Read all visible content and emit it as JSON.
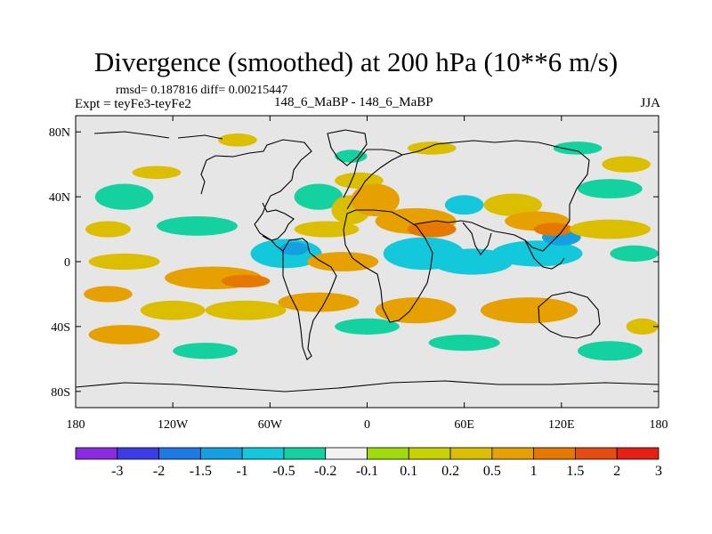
{
  "header": {
    "title": "Divergence (smoothed) at 200 hPa (10**6 m/s)",
    "stats": "rmsd= 0.187816 diff= 0.00215447",
    "experiment": "Expt = teyFe3-teyFe2",
    "case": "148_6_MaBP - 148_6_MaBP",
    "season": "JJA"
  },
  "colors": {
    "background": "#e6e6e6",
    "land_outline": "#000000"
  },
  "chart_data": {
    "type": "heatmap",
    "title": "Divergence (smoothed) at 200 hPa (10**6 m/s)",
    "xlim": [
      -180,
      180
    ],
    "ylim": [
      -90,
      90
    ],
    "x_ticks": [
      {
        "value": -180,
        "label": "180"
      },
      {
        "value": -120,
        "label": "120W"
      },
      {
        "value": -60,
        "label": "60W"
      },
      {
        "value": 0,
        "label": "0"
      },
      {
        "value": 60,
        "label": "60E"
      },
      {
        "value": 120,
        "label": "120E"
      },
      {
        "value": 180,
        "label": "180"
      }
    ],
    "y_ticks": [
      {
        "value": 80,
        "label": "80N"
      },
      {
        "value": 40,
        "label": "40N"
      },
      {
        "value": 0,
        "label": "0"
      },
      {
        "value": -40,
        "label": "40S"
      },
      {
        "value": -80,
        "label": "80S"
      }
    ],
    "colorbar": {
      "colors": [
        "#8a2be2",
        "#3c3ce6",
        "#1e78e6",
        "#14a0e0",
        "#14c8dc",
        "#14d2a0",
        "#f2f2f2",
        "#a0dc0a",
        "#c8d200",
        "#dcbe00",
        "#e6a000",
        "#e67800",
        "#e64b14",
        "#e61e14"
      ],
      "labels": [
        "-3",
        "-2",
        "-1.5",
        "-1",
        "-0.5",
        "-0.2",
        "-0.1",
        "0.1",
        "0.2",
        "0.5",
        "1",
        "1.5",
        "2",
        "3"
      ]
    },
    "features": [
      {
        "lon": -150,
        "lat": 40,
        "rx": 18,
        "ry": 8,
        "level": -0.2
      },
      {
        "lon": -160,
        "lat": 20,
        "rx": 14,
        "ry": 5,
        "level": 0.2
      },
      {
        "lon": -150,
        "lat": 0,
        "rx": 22,
        "ry": 5,
        "level": 0.2
      },
      {
        "lon": -95,
        "lat": -10,
        "rx": 30,
        "ry": 7,
        "level": 0.5
      },
      {
        "lon": -75,
        "lat": -12,
        "rx": 15,
        "ry": 4,
        "level": 1
      },
      {
        "lon": -105,
        "lat": 22,
        "rx": 25,
        "ry": 6,
        "level": -0.2
      },
      {
        "lon": -50,
        "lat": 5,
        "rx": 22,
        "ry": 9,
        "level": -0.5
      },
      {
        "lon": -45,
        "lat": 8,
        "rx": 9,
        "ry": 4,
        "level": -1
      },
      {
        "lon": -30,
        "lat": 40,
        "rx": 15,
        "ry": 8,
        "level": -0.2
      },
      {
        "lon": -10,
        "lat": 32,
        "rx": 12,
        "ry": 9,
        "level": 0.2
      },
      {
        "lon": -5,
        "lat": 50,
        "rx": 15,
        "ry": 5,
        "level": 0.2
      },
      {
        "lon": -25,
        "lat": 20,
        "rx": 20,
        "ry": 5,
        "level": 0.2
      },
      {
        "lon": -15,
        "lat": 0,
        "rx": 22,
        "ry": 6,
        "level": 0.5
      },
      {
        "lon": 5,
        "lat": 38,
        "rx": 15,
        "ry": 10,
        "level": 0.5
      },
      {
        "lon": 30,
        "lat": 25,
        "rx": 25,
        "ry": 8,
        "level": 0.5
      },
      {
        "lon": 40,
        "lat": 20,
        "rx": 15,
        "ry": 5,
        "level": 1
      },
      {
        "lon": 35,
        "lat": 5,
        "rx": 25,
        "ry": 10,
        "level": -0.5
      },
      {
        "lon": 65,
        "lat": 0,
        "rx": 25,
        "ry": 8,
        "level": -0.5
      },
      {
        "lon": 105,
        "lat": 5,
        "rx": 28,
        "ry": 8,
        "level": -0.5
      },
      {
        "lon": 120,
        "lat": 15,
        "rx": 12,
        "ry": 5,
        "level": -1
      },
      {
        "lon": 90,
        "lat": 35,
        "rx": 18,
        "ry": 7,
        "level": 0.2
      },
      {
        "lon": 105,
        "lat": 25,
        "rx": 20,
        "ry": 6,
        "level": 0.5
      },
      {
        "lon": 115,
        "lat": 20,
        "rx": 12,
        "ry": 4,
        "level": 1
      },
      {
        "lon": 60,
        "lat": 35,
        "rx": 12,
        "ry": 6,
        "level": -0.5
      },
      {
        "lon": 150,
        "lat": 20,
        "rx": 25,
        "ry": 6,
        "level": 0.2
      },
      {
        "lon": 165,
        "lat": 5,
        "rx": 15,
        "ry": 5,
        "level": -0.2
      },
      {
        "lon": 150,
        "lat": 45,
        "rx": 20,
        "ry": 6,
        "level": -0.2
      },
      {
        "lon": -75,
        "lat": -30,
        "rx": 25,
        "ry": 6,
        "level": 0.2
      },
      {
        "lon": -30,
        "lat": -25,
        "rx": 25,
        "ry": 6,
        "level": 0.5
      },
      {
        "lon": 30,
        "lat": -30,
        "rx": 25,
        "ry": 8,
        "level": 0.5
      },
      {
        "lon": 100,
        "lat": -30,
        "rx": 30,
        "ry": 8,
        "level": 0.5
      },
      {
        "lon": -120,
        "lat": -30,
        "rx": 20,
        "ry": 6,
        "level": 0.2
      },
      {
        "lon": -160,
        "lat": -20,
        "rx": 15,
        "ry": 5,
        "level": 0.5
      },
      {
        "lon": 0,
        "lat": -40,
        "rx": 20,
        "ry": 5,
        "level": -0.2
      },
      {
        "lon": 60,
        "lat": -50,
        "rx": 22,
        "ry": 5,
        "level": -0.2
      },
      {
        "lon": -100,
        "lat": -55,
        "rx": 20,
        "ry": 5,
        "level": -0.2
      },
      {
        "lon": 150,
        "lat": -55,
        "rx": 20,
        "ry": 6,
        "level": -0.2
      },
      {
        "lon": 170,
        "lat": -40,
        "rx": 10,
        "ry": 5,
        "level": 0.2
      },
      {
        "lon": -150,
        "lat": -45,
        "rx": 22,
        "ry": 6,
        "level": 0.5
      },
      {
        "lon": -80,
        "lat": 75,
        "rx": 12,
        "ry": 4,
        "level": 0.2
      },
      {
        "lon": 40,
        "lat": 70,
        "rx": 15,
        "ry": 4,
        "level": 0.2
      },
      {
        "lon": 130,
        "lat": 70,
        "rx": 15,
        "ry": 4,
        "level": -0.2
      },
      {
        "lon": -10,
        "lat": 65,
        "rx": 10,
        "ry": 4,
        "level": -0.2
      },
      {
        "lon": 160,
        "lat": 60,
        "rx": 15,
        "ry": 5,
        "level": 0.2
      },
      {
        "lon": -130,
        "lat": 55,
        "rx": 15,
        "ry": 4,
        "level": 0.2
      }
    ]
  }
}
